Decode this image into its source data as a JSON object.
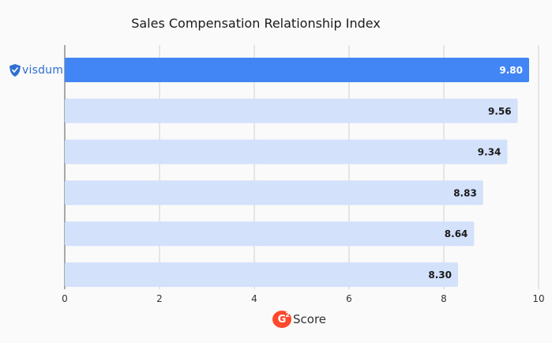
{
  "chart_data": {
    "type": "bar",
    "orientation": "horizontal",
    "title": "Sales Compensation Relationship Index",
    "categories": [
      "visdum",
      "",
      "",
      "",
      "",
      ""
    ],
    "values": [
      9.8,
      9.56,
      9.34,
      8.83,
      8.64,
      8.3
    ],
    "value_labels": [
      "9.80",
      "9.56",
      "9.34",
      "8.83",
      "8.64",
      "8.30"
    ],
    "xlim": [
      0,
      10
    ],
    "xticks": [
      "0",
      "2",
      "4",
      "6",
      "8",
      "10"
    ],
    "xlabel": "Score",
    "grid": "vertical",
    "colors": {
      "highlight": "#4285f4",
      "other": "#d4e1fb",
      "highlight_label": "#ffffff",
      "other_label": "#1a1a1a"
    }
  },
  "brand": {
    "name": "visdum",
    "icon": "shield-icon"
  },
  "xaxis_logo": {
    "badge": "G",
    "superscript": "2",
    "text": "Score"
  }
}
